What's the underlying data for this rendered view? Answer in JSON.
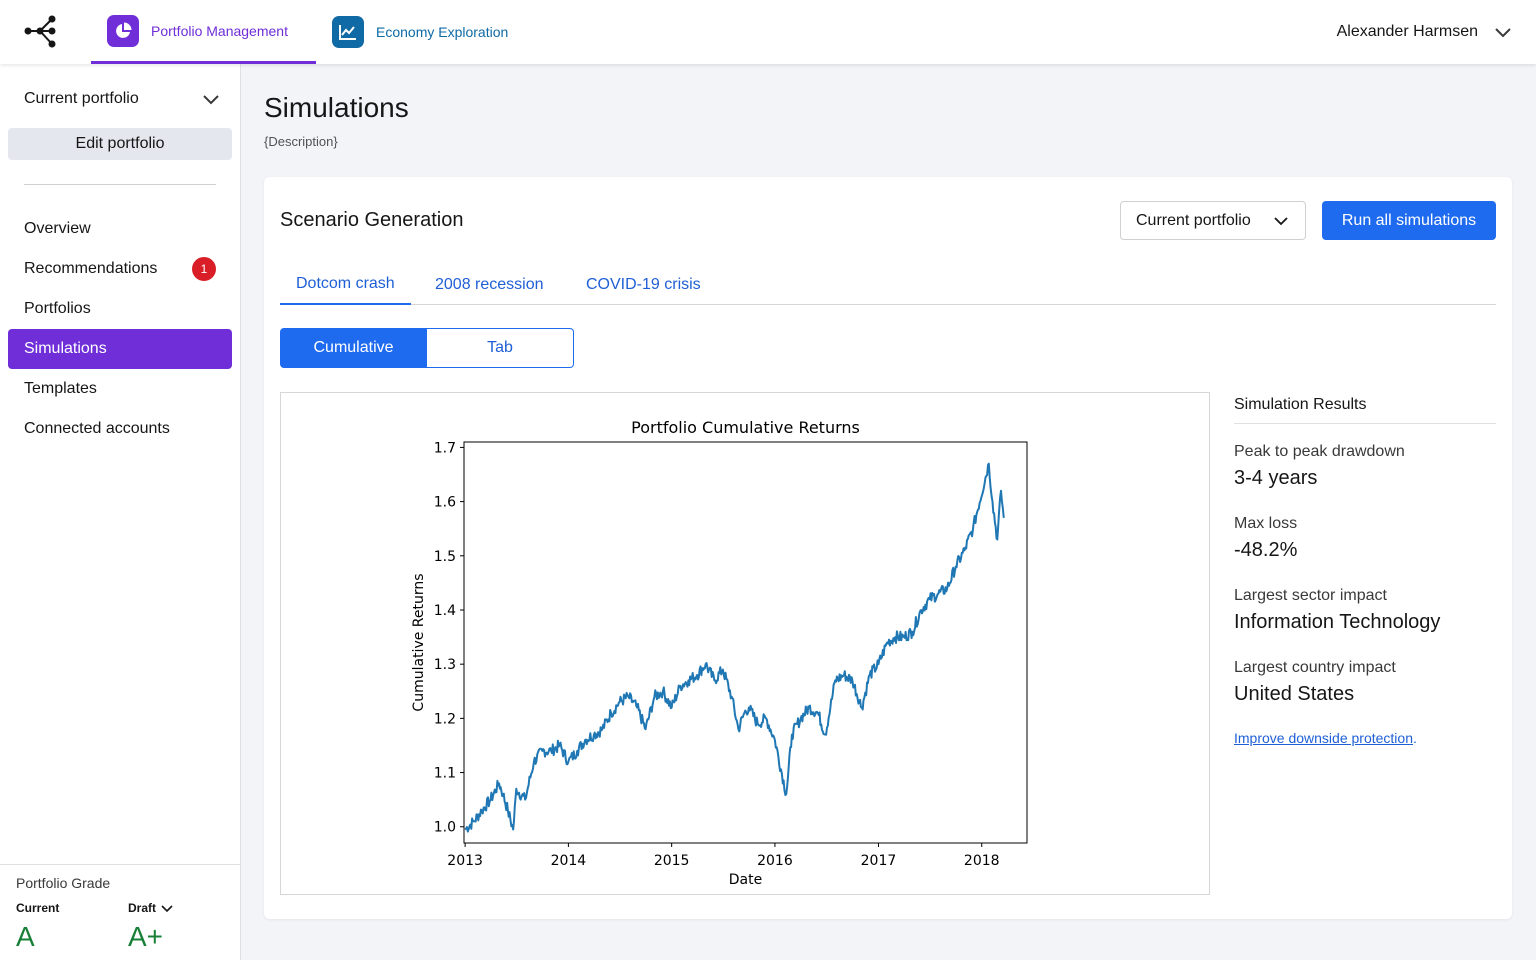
{
  "header": {
    "apps": [
      {
        "label": "Portfolio Management",
        "icon": "pie-chart-icon",
        "active": true,
        "color": "#6f2ed8"
      },
      {
        "label": "Economy Exploration",
        "icon": "line-chart-icon",
        "active": false,
        "color": "#0f6aa6"
      }
    ],
    "user_name": "Alexander Harmsen"
  },
  "sidebar": {
    "portfolio_select": "Current portfolio",
    "edit_label": "Edit portfolio",
    "items": [
      {
        "label": "Overview"
      },
      {
        "label": "Recommendations",
        "badge": "1"
      },
      {
        "label": "Portfolios"
      },
      {
        "label": "Simulations",
        "active": true
      },
      {
        "label": "Templates"
      },
      {
        "label": "Connected accounts"
      }
    ],
    "grade": {
      "title": "Portfolio Grade",
      "current_label": "Current",
      "current_value": "A",
      "draft_label": "Draft",
      "draft_value": "A+"
    }
  },
  "main": {
    "title": "Simulations",
    "description": "{Description}",
    "card": {
      "title": "Scenario Generation",
      "portfolio_select": "Current portfolio",
      "run_label": "Run all simulations",
      "scenario_tabs": [
        {
          "label": "Dotcom crash",
          "active": true
        },
        {
          "label": "2008 recession"
        },
        {
          "label": "COVID-19 crisis"
        }
      ],
      "view_toggle": [
        {
          "label": "Cumulative",
          "active": true
        },
        {
          "label": "Tab"
        }
      ]
    },
    "results": {
      "title": "Simulation Results",
      "metrics": [
        {
          "label": "Peak to peak drawdown",
          "value": "3-4 years"
        },
        {
          "label": "Max loss",
          "value": "-48.2%"
        },
        {
          "label": "Largest sector impact",
          "value": "Information Technology"
        },
        {
          "label": "Largest country impact",
          "value": "United States"
        }
      ],
      "link_text": "Improve downside protection",
      "link_suffix": "."
    }
  },
  "chart_data": {
    "type": "line",
    "title": "Portfolio Cumulative Returns",
    "xlabel": "Date",
    "ylabel": "Cumulative Returns",
    "x_ticks": [
      "2013",
      "2014",
      "2015",
      "2016",
      "2017",
      "2018"
    ],
    "y_ticks": [
      1.0,
      1.1,
      1.2,
      1.3,
      1.4,
      1.5,
      1.6,
      1.7
    ],
    "xlim": [
      "2012-12-28",
      "2018-06-10"
    ],
    "ylim": [
      0.97,
      1.71
    ],
    "grid": false,
    "color": "#1f77b4",
    "series": [
      {
        "x": [
          "2013-01-01",
          "2013-02-01",
          "2013-03-01",
          "2013-04-01",
          "2013-05-01",
          "2013-05-15",
          "2013-06-01",
          "2013-06-20",
          "2013-07-01",
          "2013-08-01",
          "2013-09-01",
          "2013-10-01",
          "2013-11-01",
          "2013-12-01",
          "2014-01-01",
          "2014-02-01",
          "2014-03-01",
          "2014-04-01",
          "2014-05-01",
          "2014-06-01",
          "2014-07-01",
          "2014-08-01",
          "2014-09-01",
          "2014-10-01",
          "2014-11-01",
          "2014-12-01",
          "2015-01-01",
          "2015-02-01",
          "2015-03-01",
          "2015-04-01",
          "2015-05-01",
          "2015-06-01",
          "2015-07-01",
          "2015-08-01",
          "2015-08-25",
          "2015-09-15",
          "2015-10-01",
          "2015-11-01",
          "2015-12-01",
          "2016-01-01",
          "2016-02-10",
          "2016-03-01",
          "2016-04-01",
          "2016-05-01",
          "2016-06-01",
          "2016-06-27",
          "2016-07-15",
          "2016-08-01",
          "2016-09-01",
          "2016-10-01",
          "2016-11-03",
          "2016-12-01",
          "2017-01-01",
          "2017-02-01",
          "2017-03-01",
          "2017-04-01",
          "2017-05-01",
          "2017-06-01",
          "2017-07-01",
          "2017-08-01",
          "2017-09-01",
          "2017-10-01",
          "2017-11-01",
          "2017-12-01",
          "2018-01-26",
          "2018-02-08",
          "2018-02-25",
          "2018-03-10",
          "2018-03-20"
        ],
        "values": [
          0.995,
          1.01,
          1.03,
          1.05,
          1.08,
          1.06,
          1.03,
          0.995,
          1.07,
          1.05,
          1.12,
          1.14,
          1.14,
          1.15,
          1.12,
          1.14,
          1.16,
          1.17,
          1.18,
          1.21,
          1.23,
          1.24,
          1.22,
          1.18,
          1.24,
          1.25,
          1.22,
          1.26,
          1.27,
          1.28,
          1.3,
          1.27,
          1.29,
          1.24,
          1.18,
          1.21,
          1.22,
          1.19,
          1.2,
          1.16,
          1.06,
          1.17,
          1.2,
          1.22,
          1.21,
          1.17,
          1.22,
          1.27,
          1.28,
          1.27,
          1.22,
          1.28,
          1.3,
          1.34,
          1.35,
          1.35,
          1.36,
          1.4,
          1.42,
          1.43,
          1.44,
          1.48,
          1.51,
          1.55,
          1.67,
          1.6,
          1.53,
          1.62,
          1.57
        ]
      }
    ]
  }
}
